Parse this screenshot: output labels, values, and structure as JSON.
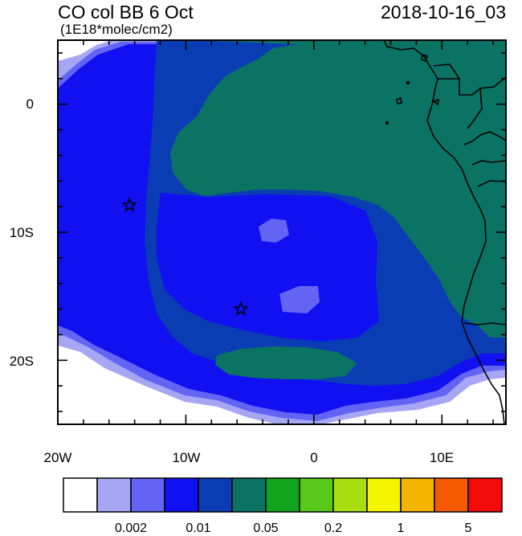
{
  "title": "CO col BB 6 Oct",
  "units": "(1E18*molec/cm2)",
  "datetime": "2018-10-16_03",
  "chart_data": {
    "type": "heatmap",
    "title": "CO col BB 6 Oct",
    "subtitle": "(1E18*molec/cm2)",
    "xlim": [
      -20,
      15
    ],
    "ylim": [
      -25,
      5
    ],
    "x_ticks": [
      {
        "value": -20,
        "label": "20W"
      },
      {
        "value": -10,
        "label": "10W"
      },
      {
        "value": 0,
        "label": "0"
      },
      {
        "value": 10,
        "label": "10E"
      }
    ],
    "y_ticks": [
      {
        "value": 0,
        "label": "0"
      },
      {
        "value": -10,
        "label": "10S"
      },
      {
        "value": -20,
        "label": "20S"
      }
    ],
    "markers": [
      {
        "name": "star",
        "lon": -14.4,
        "lat": -7.9
      },
      {
        "name": "star",
        "lon": -5.7,
        "lat": -16.0
      }
    ],
    "colorbar": {
      "colors": [
        "#ffffff",
        "#a6a6f5",
        "#6464f4",
        "#1010f0",
        "#0a3cb4",
        "#0a7364",
        "#12a41c",
        "#58c81a",
        "#a8de12",
        "#f5f500",
        "#f5b400",
        "#f55a00",
        "#f50a0a"
      ],
      "labels": [
        {
          "after_box": 2,
          "text": "0.002"
        },
        {
          "after_box": 3,
          "text": "0.01"
        },
        {
          "after_box": 4,
          "text": "0.05"
        },
        {
          "after_box": 5,
          "text": "0.2"
        },
        {
          "after_box": 6,
          "text": "1"
        },
        {
          "after_box": 7,
          "text": "5"
        }
      ]
    }
  }
}
